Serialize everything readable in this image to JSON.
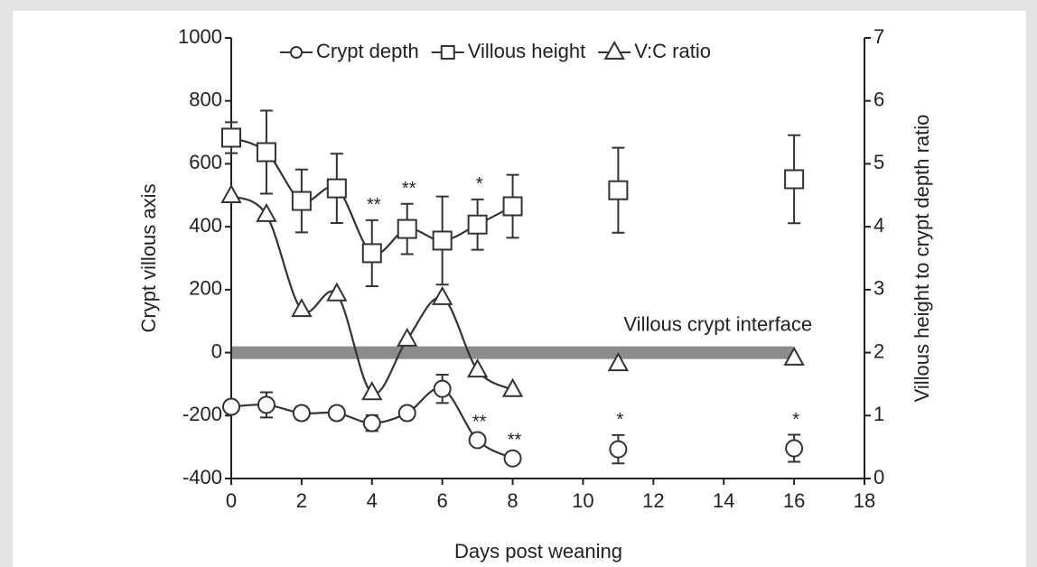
{
  "chart_data": {
    "type": "line",
    "xlabel": "Days post weaning",
    "ylabel": "Crypt villous axis",
    "y2label": "Villous height to crypt depth ratio",
    "x": [
      0,
      1,
      2,
      3,
      4,
      5,
      6,
      7,
      8,
      null,
      11,
      null,
      16
    ],
    "xlim": [
      0,
      18
    ],
    "xticks": [
      0,
      2,
      4,
      6,
      8,
      10,
      12,
      14,
      16,
      18
    ],
    "ylim": [
      -400,
      1000
    ],
    "yticks": [
      -400,
      -200,
      0,
      200,
      400,
      600,
      800,
      1000
    ],
    "y2lim": [
      0,
      7
    ],
    "y2ticks": [
      0,
      1,
      2,
      3,
      4,
      5,
      6,
      7
    ],
    "series": [
      {
        "name": "Crypt depth",
        "marker": "circle",
        "color": "#333333",
        "values": [
          -172,
          -166,
          -192,
          -192,
          -224,
          -192,
          -115,
          -278,
          -336,
          null,
          -307,
          null,
          -304
        ],
        "errors": [
          15,
          40,
          20,
          20,
          25,
          15,
          45,
          10,
          10,
          null,
          45,
          null,
          43
        ]
      },
      {
        "name": "Villous height",
        "marker": "square",
        "color": "#333333",
        "values": [
          683,
          637,
          482,
          522,
          316,
          393,
          356,
          407,
          465,
          null,
          516,
          null,
          551
        ],
        "errors": [
          49,
          132,
          100,
          110,
          105,
          80,
          140,
          80,
          100,
          null,
          135,
          null,
          140
        ]
      },
      {
        "name": "V:C ratio",
        "marker": "triangle",
        "color": "#333333",
        "axis": "y2",
        "values": [
          4.49,
          4.19,
          2.68,
          2.93,
          1.36,
          2.21,
          2.87,
          1.72,
          1.41,
          null,
          1.82,
          null,
          1.91
        ]
      }
    ],
    "reference_line": {
      "label": "Villous crypt interface",
      "y": 0,
      "x": [
        0,
        16
      ],
      "color": "#8c8c8c"
    },
    "annotations": [
      {
        "text": "**",
        "x": 4,
        "series": "Villous height"
      },
      {
        "text": "**",
        "x": 5,
        "series": "Villous height"
      },
      {
        "text": "*",
        "x": 7,
        "series": "Villous height"
      },
      {
        "text": "**",
        "x": 7,
        "series": "Crypt depth"
      },
      {
        "text": "**",
        "x": 8,
        "series": "Crypt depth"
      },
      {
        "text": "*",
        "x": 11,
        "series": "Crypt depth"
      },
      {
        "text": "*",
        "x": 16,
        "series": "Crypt depth"
      }
    ]
  }
}
